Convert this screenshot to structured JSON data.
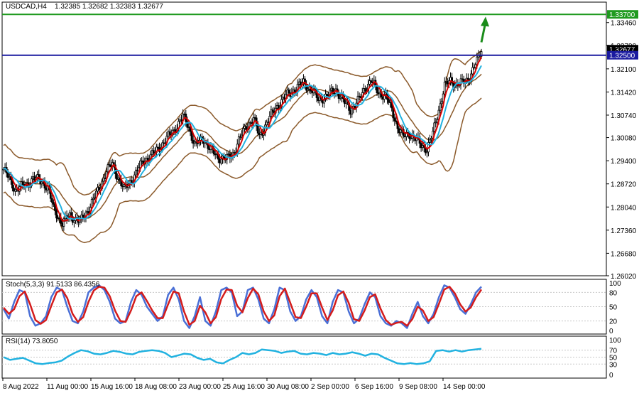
{
  "header": {
    "symbol": "USDCAD,H4",
    "ohlc": "1.32385 1.32682 1.32383 1.32677"
  },
  "colors": {
    "background": "#ffffff",
    "grid": "#c8c8c8",
    "candle": "#000000",
    "bb": "#8B5A2B",
    "ma_fast": "#d40000",
    "ma_slow": "#22b2e0",
    "resistance": "#1f9a1f",
    "support": "#1a1aa0",
    "arrow": "#1a8c1a",
    "stoch_main": "#4a6fd6",
    "stoch_signal": "#d41c1c",
    "rsi": "#22b2e0"
  },
  "chart_data": [
    {
      "type": "candlestick",
      "title": "USDCAD,H4",
      "ylim": [
        1.2602,
        1.3406
      ],
      "y_ticks": [
        "1.33460",
        "1.32790",
        "1.32100",
        "1.31420",
        "1.30740",
        "1.30080",
        "1.29400",
        "1.28720",
        "1.28040",
        "1.27360",
        "1.26680",
        "1.26020"
      ],
      "price_labels": [
        {
          "value": 1.337,
          "label": "1.33700",
          "color": "#1f9a1f"
        },
        {
          "value": 1.32677,
          "label": "1.32677",
          "color": "#000000"
        },
        {
          "value": 1.325,
          "label": "1.32500",
          "color": "#1a1aa0"
        }
      ],
      "horizontal_lines": [
        {
          "name": "resistance",
          "value": 1.337
        },
        {
          "name": "support",
          "value": 1.325
        }
      ],
      "annotation": "up-arrow",
      "x_labels": [
        "8 Aug 2022",
        "11 Aug 00:00",
        "15 Aug 16:00",
        "18 Aug 08:00",
        "23 Aug 00:00",
        "25 Aug 16:00",
        "30 Aug 08:00",
        "2 Sep 00:00",
        "6 Sep 16:00",
        "9 Sep 08:00",
        "14 Sep 00:00"
      ],
      "close_path": [
        [
          0,
          1.2915
        ],
        [
          8,
          1.2855
        ],
        [
          16,
          1.287
        ],
        [
          20,
          1.2888
        ],
        [
          26,
          1.288
        ],
        [
          30,
          1.286
        ],
        [
          34,
          1.28
        ],
        [
          40,
          1.2755
        ],
        [
          45,
          1.278
        ],
        [
          52,
          1.276
        ],
        [
          58,
          1.28
        ],
        [
          64,
          1.285
        ],
        [
          70,
          1.291
        ],
        [
          74,
          1.293
        ],
        [
          78,
          1.289
        ],
        [
          82,
          1.2855
        ],
        [
          88,
          1.289
        ],
        [
          95,
          1.294
        ],
        [
          102,
          1.296
        ],
        [
          108,
          1.299
        ],
        [
          116,
          1.303
        ],
        [
          122,
          1.307
        ],
        [
          126,
          1.304
        ],
        [
          130,
          1.2985
        ],
        [
          136,
          1.3005
        ],
        [
          141,
          1.297
        ],
        [
          146,
          1.295
        ],
        [
          152,
          1.2945
        ],
        [
          156,
          1.296
        ],
        [
          160,
          1.3
        ],
        [
          165,
          1.304
        ],
        [
          170,
          1.3065
        ],
        [
          174,
          1.301
        ],
        [
          180,
          1.306
        ],
        [
          186,
          1.31
        ],
        [
          192,
          1.313
        ],
        [
          198,
          1.315
        ],
        [
          204,
          1.317
        ],
        [
          210,
          1.3145
        ],
        [
          214,
          1.312
        ],
        [
          220,
          1.313
        ],
        [
          226,
          1.315
        ],
        [
          232,
          1.311
        ],
        [
          236,
          1.309
        ],
        [
          242,
          1.312
        ],
        [
          246,
          1.3155
        ],
        [
          250,
          1.3175
        ],
        [
          255,
          1.314
        ],
        [
          260,
          1.313
        ],
        [
          264,
          1.309
        ],
        [
          268,
          1.304
        ],
        [
          272,
          1.301
        ],
        [
          276,
          1.302
        ],
        [
          280,
          1.3005
        ],
        [
          284,
          1.2985
        ],
        [
          288,
          1.2975
        ],
        [
          292,
          1.302
        ],
        [
          296,
          1.309
        ],
        [
          300,
          1.316
        ],
        [
          304,
          1.3175
        ],
        [
          308,
          1.3165
        ],
        [
          312,
          1.3168
        ],
        [
          316,
          1.318
        ],
        [
          320,
          1.3215
        ],
        [
          323,
          1.324
        ],
        [
          325,
          1.3268
        ]
      ]
    },
    {
      "type": "line",
      "title": "Stoch(5,3,3) 91.5133 86.4356",
      "ylim": [
        0,
        100
      ],
      "y_ticks": [
        100,
        80,
        50,
        20,
        0
      ],
      "series": [
        {
          "values": [
            45,
            25,
            60,
            85,
            80,
            30,
            10,
            15,
            30,
            70,
            90,
            85,
            50,
            20,
            15,
            40,
            80,
            90,
            95,
            85,
            60,
            25,
            15,
            20,
            60,
            85,
            75,
            50,
            35,
            20,
            30,
            75,
            90,
            65,
            20,
            5,
            30,
            70,
            20,
            10,
            40,
            85,
            90,
            80,
            30,
            40,
            85,
            90,
            65,
            25,
            15,
            45,
            90,
            85,
            40,
            20,
            30,
            65,
            85,
            70,
            30,
            15,
            60,
            85,
            80,
            40,
            15,
            25,
            55,
            80,
            70,
            30,
            15,
            10,
            20,
            15,
            5,
            35,
            60,
            30,
            15,
            35,
            70,
            95,
            90,
            70,
            45,
            35,
            55,
            80,
            92
          ]
        },
        {
          "values": [
            48,
            35,
            45,
            72,
            82,
            55,
            22,
            14,
            22,
            52,
            80,
            86,
            68,
            35,
            18,
            28,
            60,
            84,
            92,
            90,
            72,
            42,
            20,
            18,
            42,
            72,
            80,
            62,
            42,
            26,
            26,
            55,
            82,
            78,
            40,
            12,
            20,
            52,
            38,
            15,
            28,
            66,
            86,
            85,
            52,
            38,
            68,
            88,
            76,
            40,
            20,
            32,
            72,
            88,
            58,
            28,
            26,
            50,
            78,
            78,
            48,
            22,
            42,
            74,
            82,
            58,
            24,
            20,
            42,
            70,
            76,
            46,
            22,
            12,
            16,
            18,
            10,
            24,
            50,
            42,
            20,
            28,
            56,
            86,
            92,
            78,
            55,
            40,
            48,
            70,
            86
          ]
        }
      ]
    },
    {
      "type": "line",
      "title": "RSI(14) 73.8050",
      "ylim": [
        0,
        100
      ],
      "y_ticks": [
        100,
        70,
        50,
        30,
        0
      ],
      "series": [
        {
          "values": [
            50,
            42,
            45,
            48,
            40,
            32,
            30,
            33,
            35,
            40,
            52,
            62,
            70,
            67,
            60,
            58,
            62,
            68,
            65,
            60,
            58,
            65,
            68,
            70,
            68,
            62,
            50,
            55,
            60,
            58,
            48,
            42,
            45,
            35,
            32,
            42,
            50,
            62,
            58,
            62,
            72,
            70,
            68,
            62,
            66,
            68,
            60,
            58,
            62,
            60,
            56,
            62,
            58,
            60,
            64,
            60,
            54,
            60,
            58,
            48,
            40,
            32,
            30,
            33,
            30,
            32,
            38,
            68,
            70,
            66,
            70,
            66,
            70,
            72,
            74
          ]
        }
      ]
    }
  ]
}
